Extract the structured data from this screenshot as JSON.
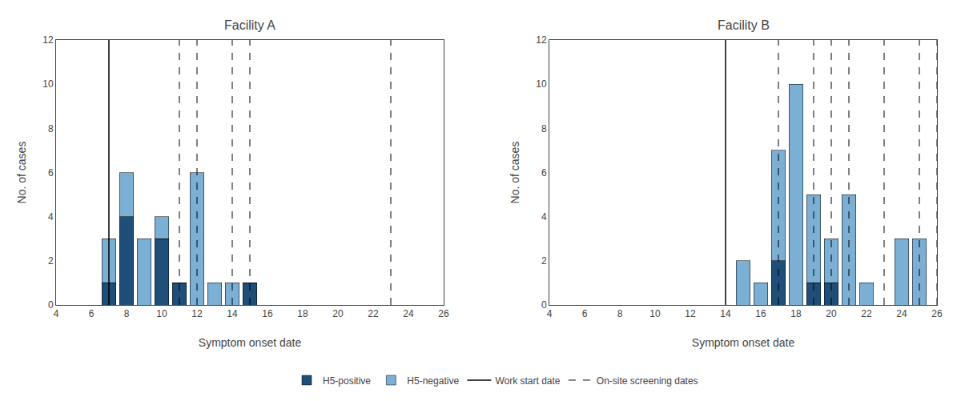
{
  "chart_data": [
    {
      "type": "bar",
      "title": "Facility A",
      "stacked": true,
      "grid": false,
      "legend": "bottom",
      "xlabel": "Symptom onset date",
      "ylabel": "No. of cases",
      "x": [
        7,
        8,
        9,
        10,
        11,
        12,
        13,
        14,
        15
      ],
      "series": [
        {
          "name": "H5-positive",
          "color": "#1f4e79",
          "values": [
            1,
            4,
            0,
            3,
            1,
            0,
            0,
            0,
            1
          ]
        },
        {
          "name": "H5-negative",
          "color": "#7bafd4",
          "values": [
            2,
            2,
            3,
            1,
            0,
            6,
            1,
            1,
            0
          ]
        }
      ],
      "vlines": [
        {
          "name": "Work start date",
          "color": "#000000",
          "line_style": "solid",
          "x": [
            7
          ]
        },
        {
          "name": "On-site screening dates",
          "color": "#000000",
          "line_style": "dashed",
          "x": [
            11,
            12,
            14,
            15,
            23
          ]
        }
      ],
      "xlim": [
        4,
        26
      ],
      "xticks": [
        4,
        6,
        8,
        10,
        12,
        14,
        16,
        18,
        20,
        22,
        24,
        26
      ],
      "ylim": [
        0,
        12
      ],
      "yticks": [
        0,
        2,
        4,
        6,
        8,
        10,
        12
      ]
    },
    {
      "type": "bar",
      "title": "Facility B",
      "stacked": true,
      "grid": false,
      "legend": "bottom",
      "xlabel": "Symptom onset date",
      "ylabel": "No. of cases",
      "x": [
        15,
        16,
        17,
        18,
        19,
        20,
        21,
        22,
        24,
        25
      ],
      "series": [
        {
          "name": "H5-positive",
          "color": "#1f4e79",
          "values": [
            0,
            0,
            2,
            0,
            1,
            1,
            0,
            0,
            0,
            0
          ]
        },
        {
          "name": "H5-negative",
          "color": "#7bafd4",
          "values": [
            2,
            1,
            5,
            10,
            4,
            2,
            5,
            1,
            3,
            3
          ]
        }
      ],
      "vlines": [
        {
          "name": "Work start date",
          "color": "#000000",
          "line_style": "solid",
          "x": [
            14
          ]
        },
        {
          "name": "On-site screening dates",
          "color": "#000000",
          "line_style": "dashed",
          "x": [
            17,
            19,
            20,
            21,
            23,
            25,
            26
          ]
        }
      ],
      "xlim": [
        4,
        26
      ],
      "xticks": [
        4,
        6,
        8,
        10,
        12,
        14,
        16,
        18,
        20,
        22,
        24,
        26
      ],
      "ylim": [
        0,
        12
      ],
      "yticks": [
        0,
        2,
        4,
        6,
        8,
        10,
        12
      ]
    }
  ]
}
